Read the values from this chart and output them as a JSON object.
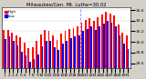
{
  "title": "Milwaukee/Gen. Mt. Luthe=30.02",
  "bar_high_color": "#ff0000",
  "bar_low_color": "#0000ff",
  "background_color": "#d4d0c8",
  "plot_bg_color": "#ffffff",
  "ylim": [
    29.5,
    30.65
  ],
  "yticks": [
    29.6,
    29.8,
    30.0,
    30.2,
    30.4,
    30.6
  ],
  "days": [
    1,
    2,
    3,
    4,
    5,
    6,
    7,
    8,
    9,
    10,
    11,
    12,
    13,
    14,
    15,
    16,
    17,
    18,
    19,
    20,
    21,
    22,
    23,
    24,
    25,
    26,
    27,
    28,
    29,
    30,
    31
  ],
  "highs": [
    30.22,
    30.22,
    30.18,
    30.12,
    30.08,
    29.98,
    29.88,
    29.9,
    30.02,
    30.14,
    30.22,
    30.2,
    30.12,
    30.04,
    30.16,
    30.2,
    30.24,
    30.26,
    30.3,
    30.36,
    30.42,
    30.44,
    30.4,
    30.46,
    30.52,
    30.56,
    30.54,
    30.5,
    30.32,
    30.18,
    30.12
  ],
  "lows": [
    30.06,
    30.1,
    30.02,
    29.94,
    29.82,
    29.74,
    29.62,
    29.67,
    29.77,
    29.92,
    30.02,
    30.02,
    29.9,
    29.84,
    29.97,
    30.02,
    30.07,
    30.1,
    30.12,
    30.2,
    30.24,
    30.3,
    30.22,
    30.3,
    30.34,
    30.4,
    30.37,
    30.3,
    30.12,
    29.97,
    29.87
  ],
  "vline_x": 19,
  "bar_width": 0.4,
  "legend_high": "High",
  "legend_low": "Low",
  "title_fontsize": 3.8,
  "tick_fontsize": 3.2
}
